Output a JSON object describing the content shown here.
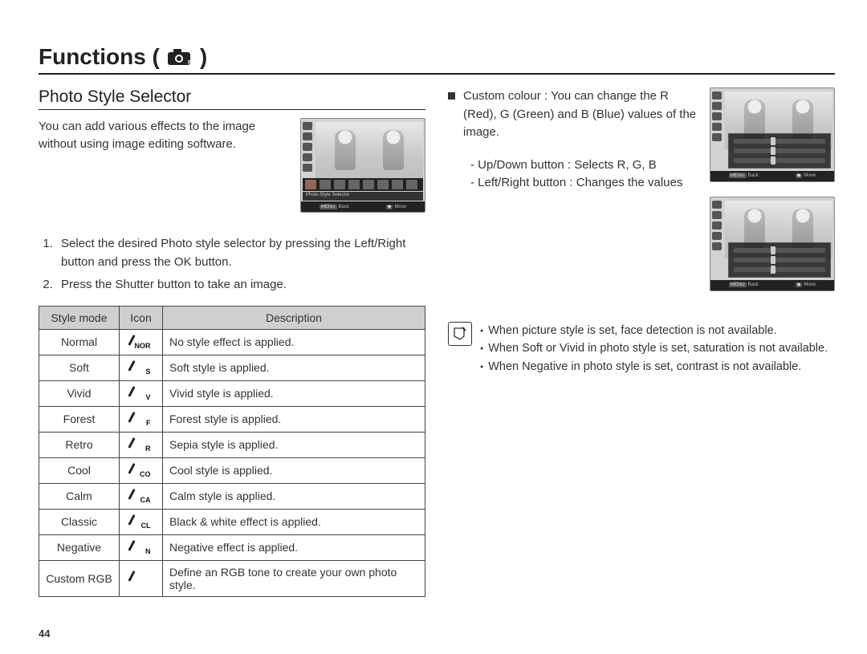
{
  "heading": "Functions (",
  "heading_close": ")",
  "subheading": "Photo Style Selector",
  "intro": "You can add various effects to the image without using image editing software.",
  "screenshot_label": "Photo Style Selector",
  "screenshot_back": "Back",
  "screenshot_move": "Move",
  "steps": [
    "Select the desired Photo style selector by pressing the Left/Right button and press the OK button.",
    "Press the Shutter button to take an image."
  ],
  "table": {
    "headers": [
      "Style mode",
      "Icon",
      "Description"
    ],
    "rows": [
      {
        "mode": "Normal",
        "sub": "NOR",
        "desc": "No style effect is applied."
      },
      {
        "mode": "Soft",
        "sub": "S",
        "desc": "Soft style is applied."
      },
      {
        "mode": "Vivid",
        "sub": "V",
        "desc": "Vivid style is applied."
      },
      {
        "mode": "Forest",
        "sub": "F",
        "desc": "Forest style is applied."
      },
      {
        "mode": "Retro",
        "sub": "R",
        "desc": "Sepia style is applied."
      },
      {
        "mode": "Cool",
        "sub": "CO",
        "desc": "Cool style is applied."
      },
      {
        "mode": "Calm",
        "sub": "CA",
        "desc": "Calm style is applied."
      },
      {
        "mode": "Classic",
        "sub": "CL",
        "desc": "Black & white effect is applied."
      },
      {
        "mode": "Negative",
        "sub": "N",
        "desc": "Negative effect is applied."
      },
      {
        "mode": "Custom RGB",
        "sub": "",
        "desc": "Define an RGB tone to create your own photo style."
      }
    ]
  },
  "custom_colour_label": "Custom colour : ",
  "custom_colour_text": "You can change the R (Red), G (Green) and B (Blue) values of the image.",
  "controls": [
    "- Up/Down button : Selects R, G, B",
    "- Left/Right button : Changes the values"
  ],
  "notes": [
    "When picture style is set, face detection is not available.",
    "When Soft or Vivid in photo style is set, saturation is not available.",
    "When Negative in photo style is set, contrast is not available."
  ],
  "page_number": "44"
}
